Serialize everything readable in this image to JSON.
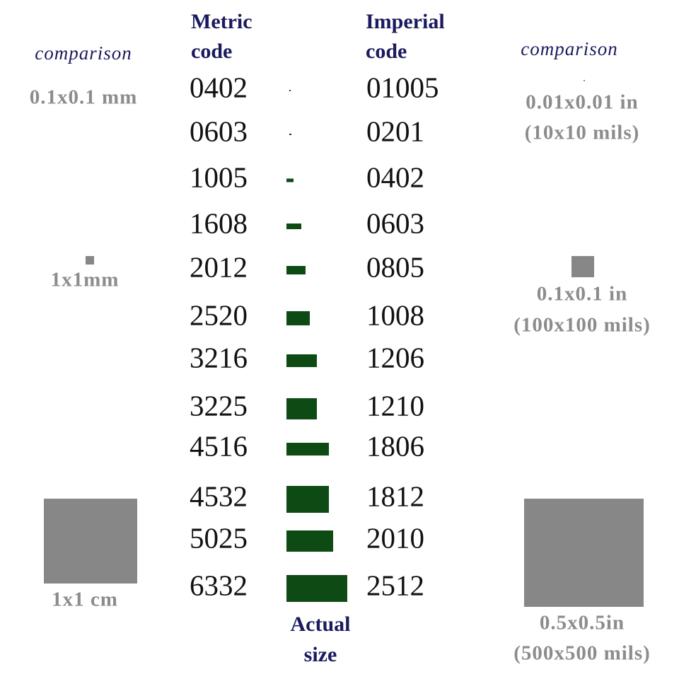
{
  "left_comparison": {
    "title": "comparison",
    "labels": [
      "0.1x0.1 mm",
      "1x1mm",
      "1x1 cm"
    ]
  },
  "metric_header": [
    "Metric",
    "code"
  ],
  "imperial_header": [
    "Imperial",
    "code"
  ],
  "actual_size_header": [
    "Actual",
    "size"
  ],
  "rows": [
    {
      "metric": "0402",
      "imperial": "01005"
    },
    {
      "metric": "0603",
      "imperial": "0201"
    },
    {
      "metric": "1005",
      "imperial": "0402"
    },
    {
      "metric": "1608",
      "imperial": "0603"
    },
    {
      "metric": "2012",
      "imperial": "0805"
    },
    {
      "metric": "2520",
      "imperial": "1008"
    },
    {
      "metric": "3216",
      "imperial": "1206"
    },
    {
      "metric": "3225",
      "imperial": "1210"
    },
    {
      "metric": "4516",
      "imperial": "1806"
    },
    {
      "metric": "4532",
      "imperial": "1812"
    },
    {
      "metric": "5025",
      "imperial": "2010"
    },
    {
      "metric": "6332",
      "imperial": "2512"
    }
  ],
  "right_comparison": {
    "title": "comparison",
    "labels": [
      [
        "0.01x0.01 in",
        "(10x10 mils)"
      ],
      [
        "0.1x0.1 in",
        "(100x100 mils)"
      ],
      [
        "0.5x0.5in",
        "(500x500 mils)"
      ]
    ]
  }
}
